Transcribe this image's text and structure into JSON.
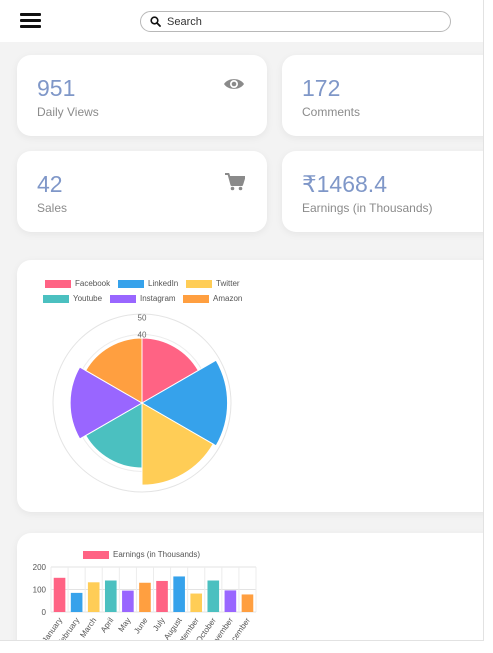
{
  "search": {
    "placeholder": "Search"
  },
  "stats": [
    {
      "value": "951",
      "label": "Daily Views",
      "icon": "eye-icon"
    },
    {
      "value": "172",
      "label": "Comments",
      "icon": ""
    },
    {
      "value": "42",
      "label": "Sales",
      "icon": "cart-icon"
    },
    {
      "value": "₹1468.4",
      "label": "Earnings (in Thousands)",
      "icon": ""
    }
  ],
  "colors": {
    "accent": "#7f97c8",
    "label": "#8b8b8b"
  },
  "chart_data": [
    {
      "type": "polarArea",
      "categories": [
        "Facebook",
        "LinkedIn",
        "Twitter",
        "Youtube",
        "Instagram",
        "Amazon"
      ],
      "values": [
        38,
        50,
        48,
        38,
        42,
        38
      ],
      "colors": [
        "#ff6384",
        "#36a2eb",
        "#ffcd56",
        "#4bc0c0",
        "#9966ff",
        "#ff9f40"
      ],
      "r_ticks": [
        "40",
        "50"
      ],
      "r_max": 52,
      "legend_position": "top-left"
    },
    {
      "type": "bar",
      "categories": [
        "January",
        "February",
        "March",
        "April",
        "May",
        "June",
        "July",
        "August",
        "September",
        "October",
        "November",
        "December"
      ],
      "series": [
        {
          "name": "Earnings (in Thousands)",
          "values": [
            152,
            85,
            132,
            140,
            95,
            130,
            138,
            158,
            82,
            140,
            96,
            78
          ]
        }
      ],
      "colors": [
        "#ff6384",
        "#36a2eb",
        "#ffcd56",
        "#4bc0c0",
        "#9966ff",
        "#ff9f40",
        "#ff6384",
        "#36a2eb",
        "#ffcd56",
        "#4bc0c0",
        "#9966ff",
        "#ff9f40"
      ],
      "y_ticks": [
        "200",
        "100",
        "0"
      ],
      "ylim": [
        0,
        200
      ],
      "legend_position": "top-center"
    }
  ]
}
